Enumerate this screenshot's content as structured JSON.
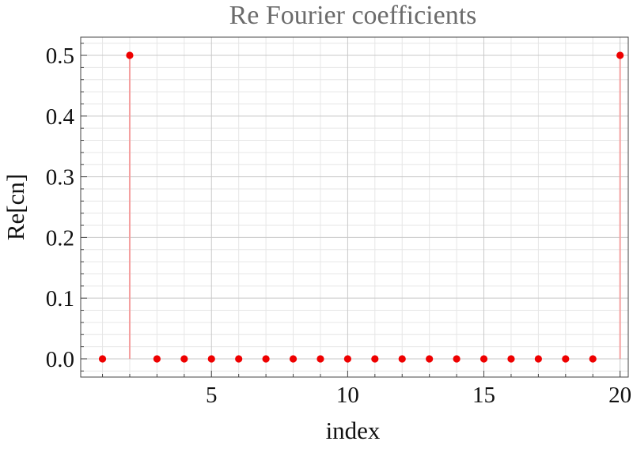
{
  "chart_data": {
    "type": "scatter",
    "title": "Re Fourier coefficients",
    "xlabel": "index",
    "ylabel": "Re[cn]",
    "xlim": [
      0.2,
      20.3
    ],
    "ylim": [
      -0.03,
      0.53
    ],
    "xticks": [
      5,
      10,
      15,
      20
    ],
    "yticks": [
      0.0,
      0.1,
      0.2,
      0.3,
      0.4,
      0.5
    ],
    "xtick_labels": [
      "5",
      "10",
      "15",
      "20"
    ],
    "ytick_labels": [
      "0.0",
      "0.1",
      "0.2",
      "0.3",
      "0.4",
      "0.5"
    ],
    "grid": true,
    "stems": true,
    "legend": "none",
    "colors": {
      "points": "#ee0000",
      "stems": "#f4a0a0"
    },
    "series": [
      {
        "x": [
          1,
          2,
          3,
          4,
          5,
          6,
          7,
          8,
          9,
          10,
          11,
          12,
          13,
          14,
          15,
          16,
          17,
          18,
          19,
          20
        ],
        "values": [
          0,
          0.5,
          0,
          0,
          0,
          0,
          0,
          0,
          0,
          0,
          0,
          0,
          0,
          0,
          0,
          0,
          0,
          0,
          0,
          0.5
        ]
      }
    ]
  }
}
